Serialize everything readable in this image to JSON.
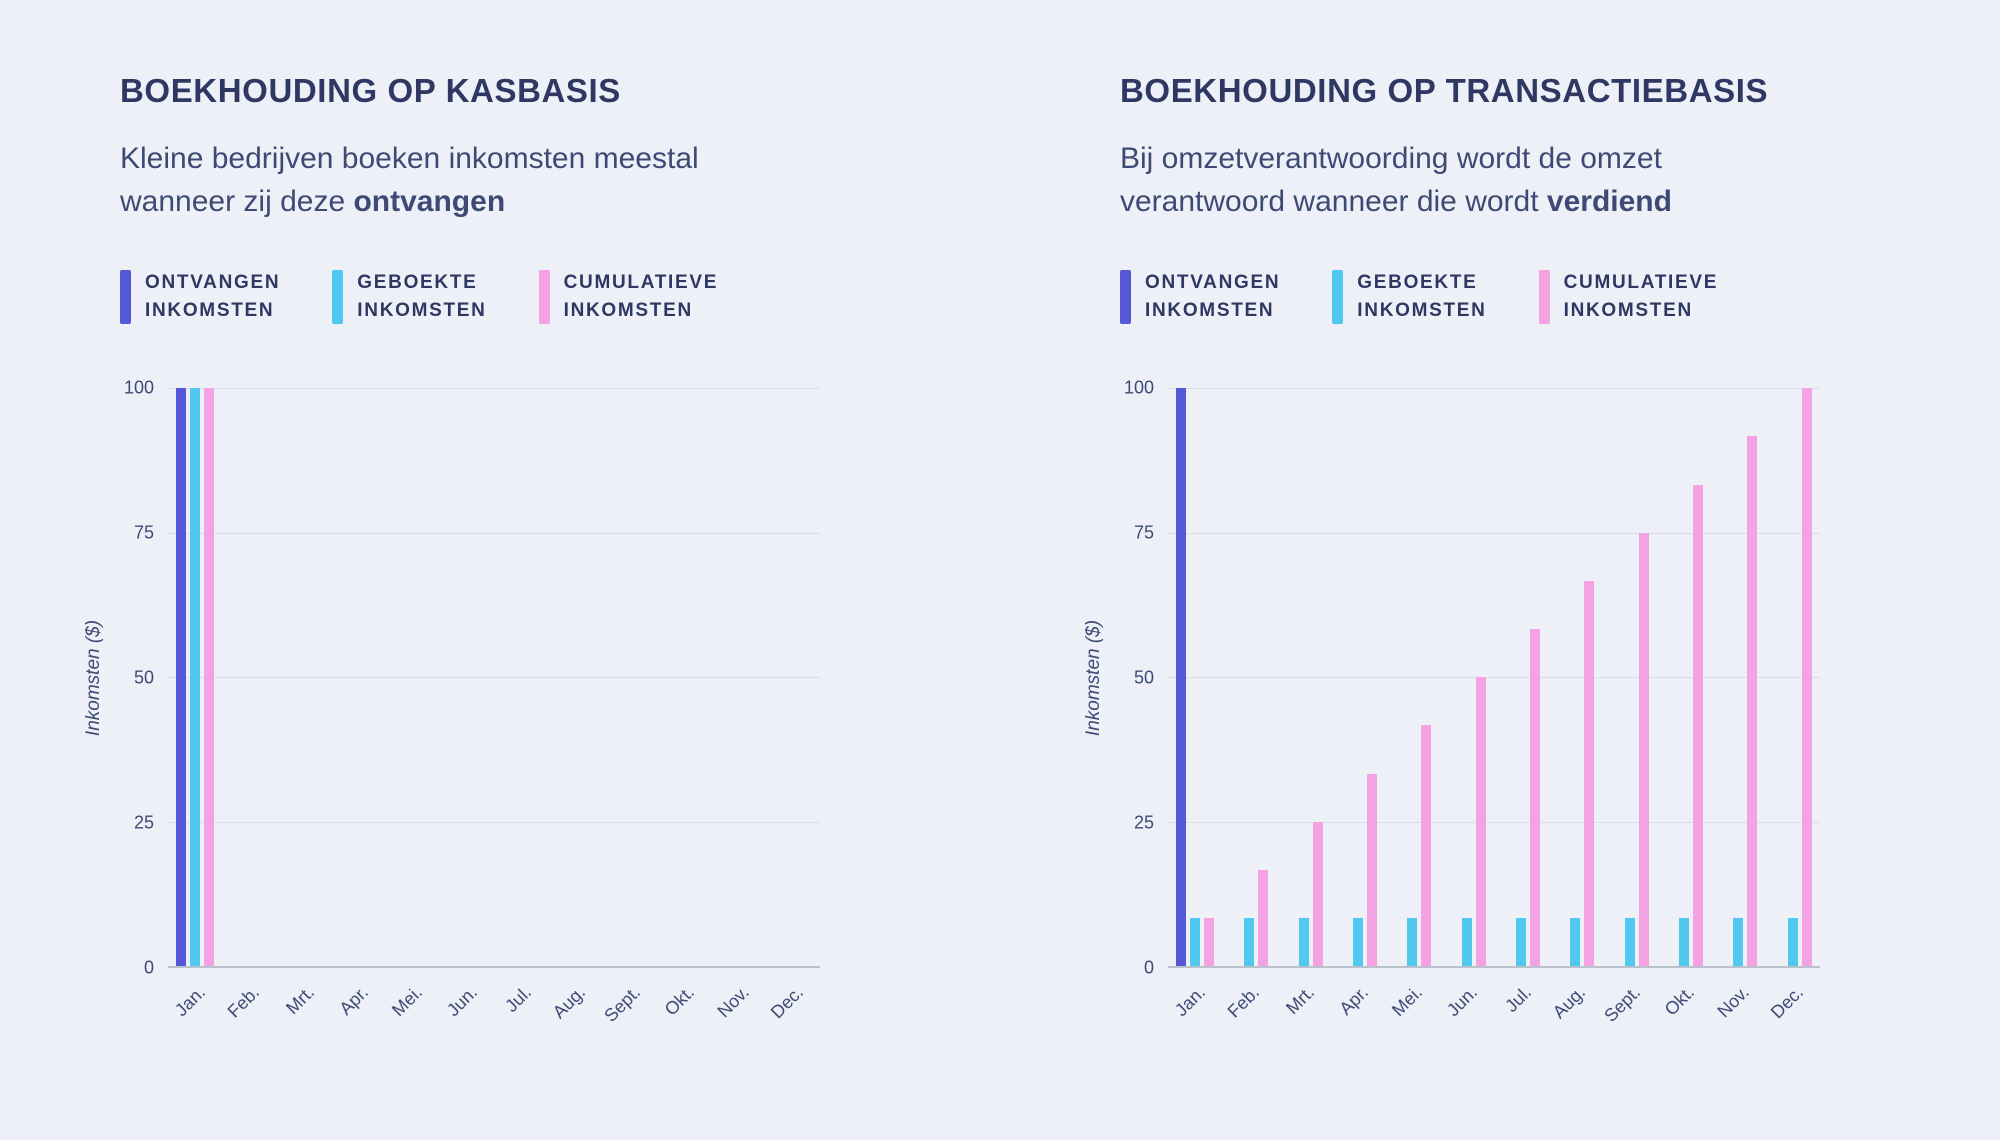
{
  "background_color": "#edf1f7",
  "text_colors": {
    "title": "#2f3763",
    "body": "#3e4a75",
    "gridline": "#d8dde7",
    "axis_line": "#b9c1cd"
  },
  "panels": [
    {
      "title": "BOEKHOUDING OP KASBASIS",
      "subtitle_line1": "Kleine bedrijven boeken inkomsten meestal",
      "subtitle_line2": "wanneer zij deze ",
      "subtitle_bold": "ontvangen"
    },
    {
      "title": "BOEKHOUDING OP TRANSACTIEBASIS",
      "subtitle_line1": "Bij omzetverantwoording wordt de omzet",
      "subtitle_line2": "verantwoord wanneer die wordt ",
      "subtitle_bold": "verdiend"
    }
  ],
  "legend": [
    {
      "line1": "ONTVANGEN",
      "line2": "INKOMSTEN",
      "color": "#5558d6"
    },
    {
      "line1": "GEBOEKTE",
      "line2": "INKOMSTEN",
      "color": "#50c8f0"
    },
    {
      "line1": "CUMULATIEVE",
      "line2": "INKOMSTEN",
      "color": "#f4a2e4"
    }
  ],
  "chart_data": [
    {
      "type": "bar",
      "title": "BOEKHOUDING OP KASBASIS",
      "categories": [
        "Jan.",
        "Feb.",
        "Mrt.",
        "Apr.",
        "Mei.",
        "Jun.",
        "Jul.",
        "Aug.",
        "Sept.",
        "Okt.",
        "Nov.",
        "Dec."
      ],
      "series": [
        {
          "name": "ONTVANGEN INKOMSTEN",
          "color": "#5558d6",
          "values": [
            100,
            0,
            0,
            0,
            0,
            0,
            0,
            0,
            0,
            0,
            0,
            0
          ]
        },
        {
          "name": "GEBOEKTE INKOMSTEN",
          "color": "#50c8f0",
          "values": [
            100,
            0,
            0,
            0,
            0,
            0,
            0,
            0,
            0,
            0,
            0,
            0
          ]
        },
        {
          "name": "CUMULATIEVE INKOMSTEN",
          "color": "#f4a2e4",
          "values": [
            100,
            0,
            0,
            0,
            0,
            0,
            0,
            0,
            0,
            0,
            0,
            0
          ]
        }
      ],
      "xlabel": "",
      "ylabel": "Inkomsten ($)",
      "yticks": [
        0,
        25,
        50,
        75,
        100
      ],
      "ylim": [
        0,
        100
      ],
      "grid": true,
      "legend_position": "top"
    },
    {
      "type": "bar",
      "title": "BOEKHOUDING OP TRANSACTIEBASIS",
      "categories": [
        "Jan.",
        "Feb.",
        "Mrt.",
        "Apr.",
        "Mei.",
        "Jun.",
        "Jul.",
        "Aug.",
        "Sept.",
        "Okt.",
        "Nov.",
        "Dec."
      ],
      "series": [
        {
          "name": "ONTVANGEN INKOMSTEN",
          "color": "#5558d6",
          "values": [
            100,
            0,
            0,
            0,
            0,
            0,
            0,
            0,
            0,
            0,
            0,
            0
          ]
        },
        {
          "name": "GEBOEKTE INKOMSTEN",
          "color": "#50c8f0",
          "values": [
            8.3,
            8.3,
            8.3,
            8.3,
            8.3,
            8.3,
            8.3,
            8.3,
            8.3,
            8.3,
            8.3,
            8.3
          ]
        },
        {
          "name": "CUMULATIEVE INKOMSTEN",
          "color": "#f4a2e4",
          "values": [
            8.3,
            16.7,
            25,
            33.3,
            41.7,
            50,
            58.3,
            66.7,
            75,
            83.3,
            91.7,
            100
          ]
        }
      ],
      "xlabel": "",
      "ylabel": "Inkomsten ($)",
      "yticks": [
        0,
        25,
        50,
        75,
        100
      ],
      "ylim": [
        0,
        100
      ],
      "grid": true,
      "legend_position": "top"
    }
  ]
}
